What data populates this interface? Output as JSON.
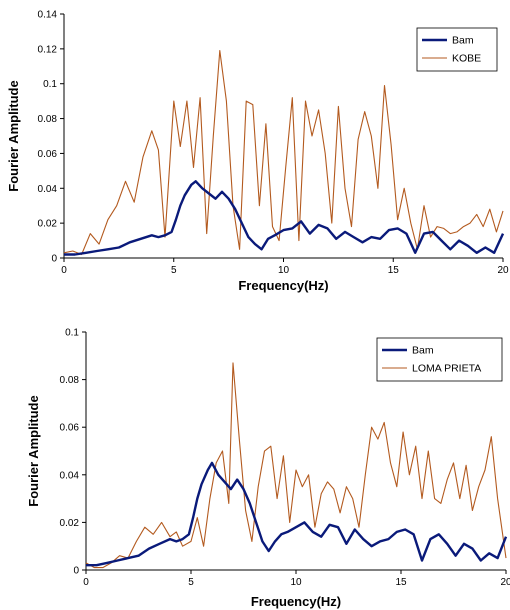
{
  "chart_data": [
    {
      "type": "line",
      "xlabel": "Frequency(Hz)",
      "ylabel": "Fourier Amplitude",
      "xlim": [
        0,
        20
      ],
      "ylim": [
        0,
        0.14
      ],
      "x_ticks": [
        "0",
        "5",
        "10",
        "15",
        "20"
      ],
      "y_ticks": [
        "0",
        "0.02",
        "0.04",
        "0.06",
        "0.08",
        "0.1",
        "0.12",
        "0.14"
      ],
      "grid": false,
      "legend_position": "top-right",
      "series": [
        {
          "name": "Bam",
          "color": "#0a1a7a",
          "x": [
            0,
            0.5,
            1,
            1.5,
            2,
            2.5,
            3,
            3.5,
            4,
            4.3,
            4.6,
            4.9,
            5.1,
            5.3,
            5.5,
            5.8,
            6.0,
            6.3,
            6.6,
            6.9,
            7.2,
            7.5,
            7.8,
            8.1,
            8.4,
            8.7,
            9.0,
            9.3,
            9.6,
            10.0,
            10.4,
            10.8,
            11.2,
            11.6,
            12.0,
            12.4,
            12.8,
            13.2,
            13.6,
            14.0,
            14.4,
            14.8,
            15.2,
            15.6,
            16.0,
            16.4,
            16.8,
            17.2,
            17.6,
            18.0,
            18.4,
            18.8,
            19.2,
            19.6,
            20
          ],
          "values": [
            0.002,
            0.002,
            0.003,
            0.004,
            0.005,
            0.006,
            0.009,
            0.011,
            0.013,
            0.012,
            0.013,
            0.015,
            0.022,
            0.03,
            0.036,
            0.042,
            0.044,
            0.04,
            0.037,
            0.034,
            0.038,
            0.034,
            0.028,
            0.02,
            0.012,
            0.008,
            0.005,
            0.011,
            0.013,
            0.016,
            0.017,
            0.021,
            0.014,
            0.019,
            0.017,
            0.011,
            0.015,
            0.012,
            0.009,
            0.012,
            0.011,
            0.016,
            0.017,
            0.014,
            0.003,
            0.014,
            0.015,
            0.01,
            0.005,
            0.01,
            0.007,
            0.003,
            0.006,
            0.003,
            0.014
          ]
        },
        {
          "name": "KOBE",
          "color": "#b35a1f",
          "x": [
            0,
            0.4,
            0.8,
            1.2,
            1.6,
            2.0,
            2.4,
            2.8,
            3.2,
            3.6,
            4.0,
            4.3,
            4.6,
            5.0,
            5.3,
            5.6,
            5.9,
            6.2,
            6.5,
            6.8,
            7.1,
            7.4,
            7.7,
            8.0,
            8.3,
            8.6,
            8.9,
            9.2,
            9.5,
            9.8,
            10.1,
            10.4,
            10.7,
            11.0,
            11.3,
            11.6,
            11.9,
            12.2,
            12.5,
            12.8,
            13.1,
            13.4,
            13.7,
            14.0,
            14.3,
            14.6,
            14.9,
            15.2,
            15.5,
            15.8,
            16.1,
            16.4,
            16.7,
            17.0,
            17.3,
            17.6,
            17.9,
            18.2,
            18.5,
            18.8,
            19.1,
            19.4,
            19.7,
            20
          ],
          "values": [
            0.003,
            0.004,
            0.002,
            0.014,
            0.008,
            0.022,
            0.03,
            0.044,
            0.032,
            0.058,
            0.073,
            0.062,
            0.012,
            0.09,
            0.064,
            0.09,
            0.052,
            0.092,
            0.014,
            0.07,
            0.119,
            0.09,
            0.03,
            0.005,
            0.09,
            0.088,
            0.03,
            0.077,
            0.018,
            0.01,
            0.052,
            0.092,
            0.01,
            0.09,
            0.07,
            0.085,
            0.06,
            0.02,
            0.087,
            0.04,
            0.018,
            0.068,
            0.084,
            0.07,
            0.04,
            0.099,
            0.065,
            0.022,
            0.04,
            0.02,
            0.005,
            0.03,
            0.012,
            0.018,
            0.017,
            0.014,
            0.015,
            0.018,
            0.02,
            0.025,
            0.018,
            0.028,
            0.015,
            0.027
          ]
        }
      ]
    },
    {
      "type": "line",
      "xlabel": "Frequency(Hz)",
      "ylabel": "Fourier Amplitude",
      "xlim": [
        0,
        20
      ],
      "ylim": [
        0,
        0.1
      ],
      "x_ticks": [
        "0",
        "5",
        "10",
        "15",
        "20"
      ],
      "y_ticks": [
        "0",
        "0.02",
        "0.04",
        "0.06",
        "0.08",
        "0.1"
      ],
      "grid": false,
      "legend_position": "top-right",
      "series": [
        {
          "name": "Bam",
          "color": "#0a1a7a",
          "x": [
            0,
            0.5,
            1,
            1.5,
            2,
            2.5,
            3,
            3.5,
            4,
            4.3,
            4.6,
            4.9,
            5.1,
            5.3,
            5.5,
            5.8,
            6.0,
            6.3,
            6.6,
            6.9,
            7.2,
            7.5,
            7.8,
            8.1,
            8.4,
            8.7,
            9.0,
            9.3,
            9.6,
            10.0,
            10.4,
            10.8,
            11.2,
            11.6,
            12.0,
            12.4,
            12.8,
            13.2,
            13.6,
            14.0,
            14.4,
            14.8,
            15.2,
            15.6,
            16.0,
            16.4,
            16.8,
            17.2,
            17.6,
            18.0,
            18.4,
            18.8,
            19.2,
            19.6,
            20
          ],
          "values": [
            0.002,
            0.002,
            0.003,
            0.004,
            0.005,
            0.006,
            0.009,
            0.011,
            0.013,
            0.012,
            0.013,
            0.015,
            0.022,
            0.03,
            0.036,
            0.042,
            0.045,
            0.04,
            0.037,
            0.034,
            0.038,
            0.034,
            0.028,
            0.02,
            0.012,
            0.008,
            0.012,
            0.015,
            0.016,
            0.018,
            0.02,
            0.016,
            0.014,
            0.019,
            0.018,
            0.011,
            0.017,
            0.013,
            0.01,
            0.012,
            0.013,
            0.016,
            0.017,
            0.015,
            0.004,
            0.013,
            0.015,
            0.011,
            0.006,
            0.011,
            0.009,
            0.004,
            0.007,
            0.005,
            0.014
          ]
        },
        {
          "name": "LOMA PRIETA",
          "color": "#b35a1f",
          "x": [
            0,
            0.4,
            0.8,
            1.2,
            1.6,
            2.0,
            2.4,
            2.8,
            3.2,
            3.6,
            4.0,
            4.3,
            4.6,
            5.0,
            5.3,
            5.6,
            5.9,
            6.2,
            6.5,
            6.8,
            7.0,
            7.3,
            7.6,
            7.9,
            8.2,
            8.5,
            8.8,
            9.1,
            9.4,
            9.7,
            10.0,
            10.3,
            10.6,
            10.9,
            11.2,
            11.5,
            11.8,
            12.1,
            12.4,
            12.7,
            13.0,
            13.3,
            13.6,
            13.9,
            14.2,
            14.5,
            14.8,
            15.1,
            15.4,
            15.7,
            16.0,
            16.3,
            16.6,
            16.9,
            17.2,
            17.5,
            17.8,
            18.1,
            18.4,
            18.7,
            19.0,
            19.3,
            19.6,
            20
          ],
          "values": [
            0.003,
            0.001,
            0.001,
            0.003,
            0.006,
            0.005,
            0.012,
            0.018,
            0.015,
            0.02,
            0.014,
            0.016,
            0.01,
            0.012,
            0.022,
            0.01,
            0.03,
            0.045,
            0.05,
            0.028,
            0.087,
            0.055,
            0.025,
            0.012,
            0.035,
            0.05,
            0.052,
            0.03,
            0.048,
            0.02,
            0.042,
            0.035,
            0.04,
            0.018,
            0.032,
            0.037,
            0.034,
            0.024,
            0.035,
            0.03,
            0.018,
            0.04,
            0.06,
            0.055,
            0.062,
            0.045,
            0.035,
            0.058,
            0.04,
            0.052,
            0.03,
            0.05,
            0.03,
            0.028,
            0.038,
            0.045,
            0.03,
            0.044,
            0.025,
            0.035,
            0.042,
            0.056,
            0.03,
            0.005
          ]
        }
      ]
    }
  ]
}
